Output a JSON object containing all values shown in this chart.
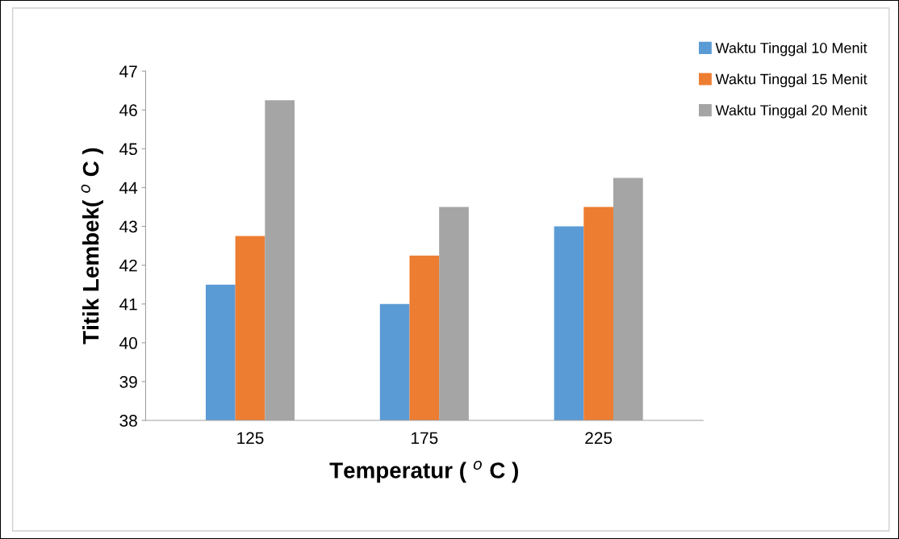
{
  "chart_data": {
    "type": "bar",
    "xlabel": "Temperatur ( $^{o}$ C )",
    "ylabel": "Titik Lembek( $^{o}$ C )",
    "categories": [
      "125",
      "175",
      "225"
    ],
    "series": [
      {
        "name": "Waktu Tinggal 10 Menit",
        "color": "#5b9bd5",
        "values": [
          41.5,
          41,
          43
        ]
      },
      {
        "name": "Waktu Tinggal 15 Menit",
        "color": "#ed7d31",
        "values": [
          42.75,
          42.25,
          43.5
        ]
      },
      {
        "name": "Waktu Tinggal 20 Menit",
        "color": "#a5a5a5",
        "values": [
          46.25,
          43.5,
          44.25
        ]
      }
    ],
    "ylim": [
      38,
      47
    ],
    "yticks": [
      38,
      39,
      40,
      41,
      42,
      43,
      44,
      45,
      46,
      47
    ],
    "grid": false,
    "legend": "top right"
  }
}
